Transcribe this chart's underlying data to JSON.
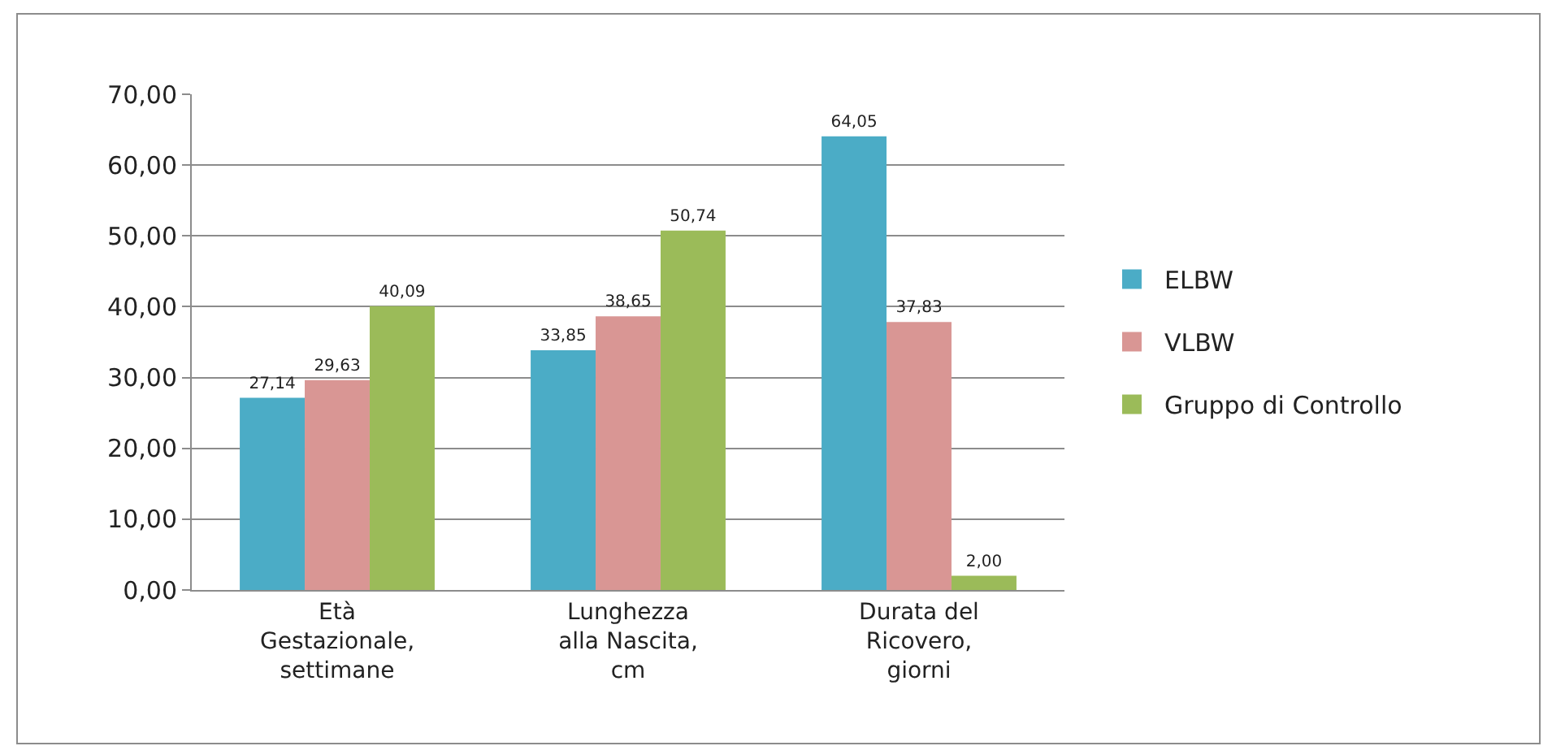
{
  "chart_data": {
    "type": "bar",
    "categories": [
      "Età Gestazionale, settimane",
      "Lunghezza alla Nascita, cm",
      "Durata del Ricovero, giorni"
    ],
    "series": [
      {
        "name": "ELBW",
        "color": "#4bacc6",
        "values": [
          27.14,
          33.85,
          64.05
        ],
        "value_labels": [
          "27,14",
          "33,85",
          "64,05"
        ]
      },
      {
        "name": "VLBW",
        "color": "#d99694",
        "values": [
          29.63,
          38.65,
          37.83
        ],
        "value_labels": [
          "29,63",
          "38,65",
          "37,83"
        ]
      },
      {
        "name": "Gruppo di Controllo",
        "color": "#9bbb59",
        "values": [
          40.09,
          50.74,
          2.0
        ],
        "value_labels": [
          "40,09",
          "50,74",
          "2,00"
        ]
      }
    ],
    "ylim": [
      0,
      70
    ],
    "yticks": [
      {
        "value": 0,
        "label": "0,00"
      },
      {
        "value": 10,
        "label": "10,00"
      },
      {
        "value": 20,
        "label": "20,00"
      },
      {
        "value": 30,
        "label": "30,00"
      },
      {
        "value": 40,
        "label": "40,00"
      },
      {
        "value": 50,
        "label": "50,00"
      },
      {
        "value": 60,
        "label": "60,00"
      },
      {
        "value": 70,
        "label": "70,00"
      }
    ],
    "grid": "y",
    "legend": "right"
  }
}
